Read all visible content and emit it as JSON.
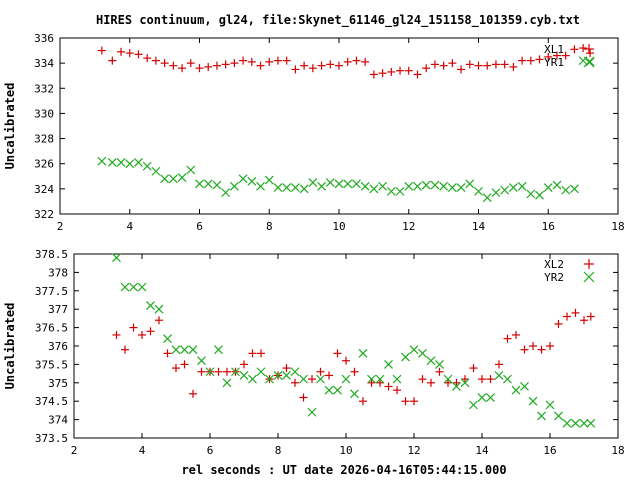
{
  "title": "HIRES continuum, gl24, file:Skynet_61146_gl24_151158_101359.cyb.txt",
  "xlabel": "rel seconds : UT date 2026-04-16T05:44:15.000",
  "colors": {
    "series1": "#d40000",
    "series2": "#22aa22"
  },
  "chart_data": [
    {
      "type": "scatter",
      "ylabel": "Uncalibrated",
      "xlim": [
        2,
        18
      ],
      "ylim": [
        322,
        336
      ],
      "xticks": [
        2,
        4,
        6,
        8,
        10,
        12,
        14,
        16,
        18
      ],
      "yticks": [
        322,
        324,
        326,
        328,
        330,
        332,
        334,
        336
      ],
      "legend_position": "top-right",
      "series": [
        {
          "name": "XL1",
          "marker": "plus",
          "color": "#d40000",
          "x": [
            3.2,
            3.5,
            3.75,
            4.0,
            4.25,
            4.5,
            4.75,
            5.0,
            5.25,
            5.5,
            5.75,
            6.0,
            6.25,
            6.5,
            6.75,
            7.0,
            7.25,
            7.5,
            7.75,
            8.0,
            8.25,
            8.5,
            8.75,
            9.0,
            9.25,
            9.5,
            9.75,
            10.0,
            10.25,
            10.5,
            10.75,
            11.0,
            11.25,
            11.5,
            11.75,
            12.0,
            12.25,
            12.5,
            12.75,
            13.0,
            13.25,
            13.5,
            13.75,
            14.0,
            14.25,
            14.5,
            14.75,
            15.0,
            15.25,
            15.5,
            15.75,
            16.0,
            16.25,
            16.5,
            16.75,
            17.0,
            17.2
          ],
          "y": [
            335.0,
            334.2,
            334.9,
            334.8,
            334.7,
            334.4,
            334.2,
            334.0,
            333.8,
            333.6,
            334.0,
            333.6,
            333.7,
            333.8,
            333.9,
            334.0,
            334.2,
            334.1,
            333.8,
            334.1,
            334.2,
            334.2,
            333.5,
            333.8,
            333.6,
            333.8,
            333.9,
            333.8,
            334.1,
            334.2,
            334.1,
            333.1,
            333.2,
            333.3,
            333.4,
            333.4,
            333.1,
            333.6,
            333.9,
            333.8,
            334.0,
            333.5,
            333.9,
            333.8,
            333.8,
            333.9,
            333.9,
            333.7,
            334.2,
            334.2,
            334.3,
            334.5,
            334.6,
            334.6,
            335.1,
            335.2,
            334.8
          ]
        },
        {
          "name": "YR1",
          "marker": "cross",
          "color": "#22aa22",
          "x": [
            3.2,
            3.5,
            3.75,
            4.0,
            4.25,
            4.5,
            4.75,
            5.0,
            5.25,
            5.5,
            5.75,
            6.0,
            6.25,
            6.5,
            6.75,
            7.0,
            7.25,
            7.5,
            7.75,
            8.0,
            8.25,
            8.5,
            8.75,
            9.0,
            9.25,
            9.5,
            9.75,
            10.0,
            10.25,
            10.5,
            10.75,
            11.0,
            11.25,
            11.5,
            11.75,
            12.0,
            12.25,
            12.5,
            12.75,
            13.0,
            13.25,
            13.5,
            13.75,
            14.0,
            14.25,
            14.5,
            14.75,
            15.0,
            15.25,
            15.5,
            15.75,
            16.0,
            16.25,
            16.5,
            16.75,
            17.0,
            17.2
          ],
          "y": [
            326.2,
            326.1,
            326.1,
            326.0,
            326.1,
            325.8,
            325.4,
            324.8,
            324.8,
            324.9,
            325.5,
            324.4,
            324.4,
            324.3,
            323.7,
            324.2,
            324.8,
            324.6,
            324.2,
            324.7,
            324.1,
            324.1,
            324.1,
            324.0,
            324.5,
            324.2,
            324.5,
            324.4,
            324.4,
            324.4,
            324.2,
            324.0,
            324.2,
            323.8,
            323.8,
            324.2,
            324.2,
            324.3,
            324.3,
            324.2,
            324.1,
            324.1,
            324.4,
            323.8,
            323.3,
            323.7,
            323.9,
            324.1,
            324.2,
            323.6,
            323.5,
            324.1,
            324.3,
            323.9,
            324.0,
            334.2,
            334.1
          ]
        }
      ]
    },
    {
      "type": "scatter",
      "ylabel": "Uncalibrated",
      "xlim": [
        2,
        18
      ],
      "ylim": [
        373.5,
        378.5
      ],
      "xticks": [
        2,
        4,
        6,
        8,
        10,
        12,
        14,
        16,
        18
      ],
      "yticks": [
        373.5,
        374,
        374.5,
        375,
        375.5,
        376,
        376.5,
        377,
        377.5,
        378,
        378.5
      ],
      "legend_position": "top-right",
      "series": [
        {
          "name": "XL2",
          "marker": "plus",
          "color": "#d40000",
          "x": [
            3.25,
            3.5,
            3.75,
            4.0,
            4.25,
            4.5,
            4.75,
            5.0,
            5.25,
            5.5,
            5.75,
            6.0,
            6.25,
            6.5,
            6.75,
            7.0,
            7.25,
            7.5,
            7.75,
            8.0,
            8.25,
            8.5,
            8.75,
            9.0,
            9.25,
            9.5,
            9.75,
            10.0,
            10.25,
            10.5,
            10.75,
            11.0,
            11.25,
            11.5,
            11.75,
            12.0,
            12.25,
            12.5,
            12.75,
            13.0,
            13.25,
            13.5,
            13.75,
            14.0,
            14.25,
            14.5,
            14.75,
            15.0,
            15.25,
            15.5,
            15.75,
            16.0,
            16.25,
            16.5,
            16.75,
            17.0,
            17.2
          ],
          "y": [
            376.3,
            375.9,
            376.5,
            376.3,
            376.4,
            376.7,
            375.8,
            375.4,
            375.5,
            374.7,
            375.3,
            375.3,
            375.3,
            375.3,
            375.3,
            375.5,
            375.8,
            375.8,
            375.1,
            375.2,
            375.4,
            375.0,
            374.6,
            375.1,
            375.3,
            375.2,
            375.8,
            375.6,
            375.3,
            374.5,
            375.0,
            375.0,
            374.9,
            374.8,
            374.5,
            374.5,
            375.1,
            375.0,
            375.3,
            375.0,
            375.0,
            375.1,
            375.4,
            375.1,
            375.1,
            375.5,
            376.2,
            376.3,
            375.9,
            376.0,
            375.9,
            376.0,
            376.6,
            376.8,
            376.9,
            376.7,
            376.8
          ]
        },
        {
          "name": "YR2",
          "marker": "cross",
          "color": "#22aa22",
          "x": [
            3.25,
            3.5,
            3.75,
            4.0,
            4.25,
            4.5,
            4.75,
            5.0,
            5.25,
            5.5,
            5.75,
            6.0,
            6.25,
            6.5,
            6.75,
            7.0,
            7.25,
            7.5,
            7.75,
            8.0,
            8.25,
            8.5,
            8.75,
            9.0,
            9.25,
            9.5,
            9.75,
            10.0,
            10.25,
            10.5,
            10.75,
            11.0,
            11.25,
            11.5,
            11.75,
            12.0,
            12.25,
            12.5,
            12.75,
            13.0,
            13.25,
            13.5,
            13.75,
            14.0,
            14.25,
            14.5,
            14.75,
            15.0,
            15.25,
            15.5,
            15.75,
            16.0,
            16.25,
            16.5,
            16.75,
            17.0,
            17.2
          ],
          "y": [
            378.4,
            377.6,
            377.6,
            377.6,
            377.1,
            377.0,
            376.2,
            375.9,
            375.9,
            375.9,
            375.6,
            375.3,
            375.9,
            375.0,
            375.3,
            375.2,
            375.1,
            375.3,
            375.1,
            375.2,
            375.2,
            375.3,
            375.1,
            374.2,
            375.1,
            374.8,
            374.8,
            375.1,
            374.7,
            375.8,
            375.1,
            375.1,
            375.5,
            375.1,
            375.7,
            375.9,
            375.8,
            375.6,
            375.5,
            375.1,
            374.9,
            375.0,
            374.4,
            374.6,
            374.6,
            375.2,
            375.1,
            374.8,
            374.9,
            374.5,
            374.1,
            374.4,
            374.1,
            373.9,
            373.9,
            373.9,
            373.9
          ]
        }
      ]
    }
  ]
}
